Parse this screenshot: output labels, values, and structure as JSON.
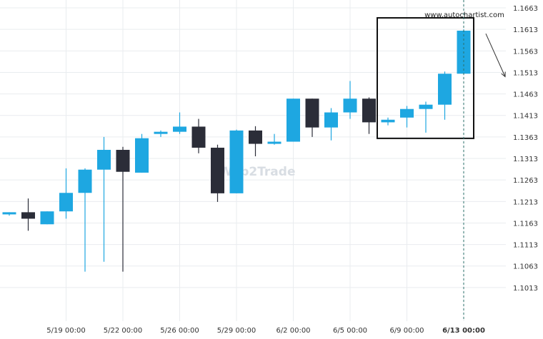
{
  "watermark": "Web2Trade",
  "site_label": "www.autochartist.com",
  "colors": {
    "bull": "#1ea7e1",
    "bear": "#2b2d38",
    "grid": "#e9ecef",
    "box": "#111111",
    "vline": "#2a6f6a"
  },
  "chart_data": {
    "type": "candlestick",
    "title": "",
    "xlabel": "",
    "ylabel": "",
    "ylim": [
      1.0973,
      1.1673
    ],
    "grid": true,
    "x_tick_labels": [
      "5/19 00:00",
      "5/22 00:00",
      "5/26 00:00",
      "5/29 00:00",
      "6/2 00:00",
      "6/5 00:00",
      "6/9 00:00",
      "6/13 00:00"
    ],
    "x_tick_candle_index": [
      3,
      6,
      9,
      12,
      15,
      18,
      21,
      24
    ],
    "y_ticks": [
      "1.1663",
      "1.1613",
      "1.1563",
      "1.1513",
      "1.1463",
      "1.1413",
      "1.1363",
      "1.1313",
      "1.1263",
      "1.1213",
      "1.1163",
      "1.1113",
      "1.1063",
      "1.1013"
    ],
    "candles": [
      {
        "o": 1.1183,
        "h": 1.1188,
        "l": 1.118,
        "c": 1.1188
      },
      {
        "o": 1.1188,
        "h": 1.122,
        "l": 1.1145,
        "c": 1.1173
      },
      {
        "o": 1.116,
        "h": 1.119,
        "l": 1.116,
        "c": 1.119
      },
      {
        "o": 1.119,
        "h": 1.129,
        "l": 1.1173,
        "c": 1.1233
      },
      {
        "o": 1.1233,
        "h": 1.129,
        "l": 1.105,
        "c": 1.1287
      },
      {
        "o": 1.1287,
        "h": 1.1363,
        "l": 1.1073,
        "c": 1.1333
      },
      {
        "o": 1.1333,
        "h": 1.134,
        "l": 1.105,
        "c": 1.1282
      },
      {
        "o": 1.128,
        "h": 1.137,
        "l": 1.128,
        "c": 1.136
      },
      {
        "o": 1.137,
        "h": 1.1378,
        "l": 1.1363,
        "c": 1.1375
      },
      {
        "o": 1.1375,
        "h": 1.142,
        "l": 1.137,
        "c": 1.1387
      },
      {
        "o": 1.1387,
        "h": 1.1405,
        "l": 1.1325,
        "c": 1.1338
      },
      {
        "o": 1.1338,
        "h": 1.1345,
        "l": 1.1212,
        "c": 1.1232
      },
      {
        "o": 1.1232,
        "h": 1.138,
        "l": 1.1232,
        "c": 1.1378
      },
      {
        "o": 1.1378,
        "h": 1.1388,
        "l": 1.1318,
        "c": 1.1347
      },
      {
        "o": 1.1347,
        "h": 1.137,
        "l": 1.1345,
        "c": 1.1352
      },
      {
        "o": 1.1352,
        "h": 1.1452,
        "l": 1.1352,
        "c": 1.1452
      },
      {
        "o": 1.1452,
        "h": 1.1452,
        "l": 1.1363,
        "c": 1.1385
      },
      {
        "o": 1.1385,
        "h": 1.143,
        "l": 1.1355,
        "c": 1.142
      },
      {
        "o": 1.142,
        "h": 1.1493,
        "l": 1.1405,
        "c": 1.1452
      },
      {
        "o": 1.1452,
        "h": 1.1455,
        "l": 1.137,
        "c": 1.1397
      },
      {
        "o": 1.1397,
        "h": 1.1408,
        "l": 1.139,
        "c": 1.1403
      },
      {
        "o": 1.1408,
        "h": 1.1435,
        "l": 1.1385,
        "c": 1.1428
      },
      {
        "o": 1.1428,
        "h": 1.1445,
        "l": 1.1373,
        "c": 1.1438
      },
      {
        "o": 1.1438,
        "h": 1.1515,
        "l": 1.1403,
        "c": 1.151
      },
      {
        "o": 1.151,
        "h": 1.1613,
        "l": 1.151,
        "c": 1.161
      }
    ],
    "highlight_box": {
      "from_candle": 20,
      "to_candle": 24,
      "y_top": 1.1663,
      "y_bottom": 1.1363
    },
    "vertical_marker_candle": 24,
    "arrow": {
      "from_price": 1.1603,
      "to_price": 1.1503
    }
  }
}
